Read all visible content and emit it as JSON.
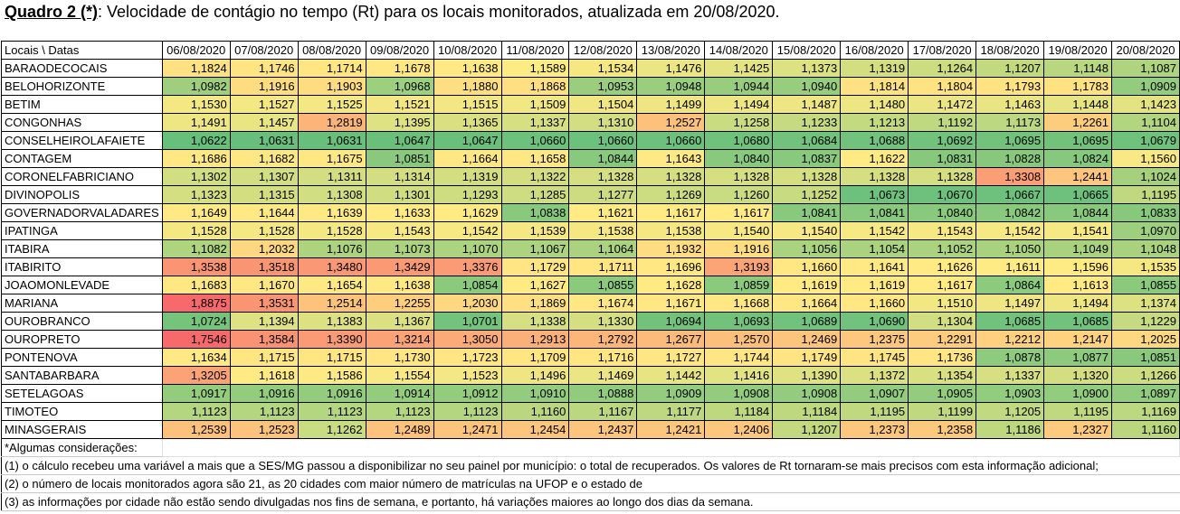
{
  "title": {
    "bold_part": "Quadro 2 (*)",
    "rest": ": Velocidade de contágio no tempo (Rt) para os locais monitorados,  atualizada em 20/08/2020."
  },
  "header": {
    "corner": "Locais  \\  Datas",
    "dates": [
      "06/08/2020",
      "07/08/2020",
      "08/08/2020",
      "09/08/2020",
      "10/08/2020",
      "11/08/2020",
      "12/08/2020",
      "13/08/2020",
      "14/08/2020",
      "15/08/2020",
      "16/08/2020",
      "17/08/2020",
      "18/08/2020",
      "19/08/2020",
      "20/08/2020"
    ]
  },
  "rows": [
    {
      "name": "BARAODECOCAIS",
      "values": [
        "1,1824",
        "1,1746",
        "1,1714",
        "1,1678",
        "1,1638",
        "1,1589",
        "1,1534",
        "1,1476",
        "1,1425",
        "1,1373",
        "1,1319",
        "1,1264",
        "1,1207",
        "1,1148",
        "1,1087"
      ]
    },
    {
      "name": "BELOHORIZONTE",
      "values": [
        "1,0982",
        "1,1916",
        "1,1903",
        "1,0968",
        "1,1880",
        "1,1868",
        "1,0953",
        "1,0948",
        "1,0944",
        "1,0940",
        "1,1814",
        "1,1804",
        "1,1793",
        "1,1783",
        "1,0909"
      ]
    },
    {
      "name": "BETIM",
      "values": [
        "1,1530",
        "1,1527",
        "1,1525",
        "1,1521",
        "1,1515",
        "1,1509",
        "1,1504",
        "1,1499",
        "1,1494",
        "1,1487",
        "1,1480",
        "1,1472",
        "1,1463",
        "1,1448",
        "1,1423"
      ]
    },
    {
      "name": "CONGONHAS",
      "values": [
        "1,1491",
        "1,1457",
        "1,2819",
        "1,1395",
        "1,1365",
        "1,1337",
        "1,1310",
        "1,2527",
        "1,1258",
        "1,1233",
        "1,1213",
        "1,1192",
        "1,1173",
        "1,2261",
        "1,1104"
      ]
    },
    {
      "name": "CONSELHEIROLAFAIETE",
      "values": [
        "1,0622",
        "1,0631",
        "1,0631",
        "1,0647",
        "1,0647",
        "1,0660",
        "1,0660",
        "1,0660",
        "1,0680",
        "1,0684",
        "1,0688",
        "1,0692",
        "1,0695",
        "1,0695",
        "1,0679"
      ]
    },
    {
      "name": "CONTAGEM",
      "values": [
        "1,1686",
        "1,1682",
        "1,1675",
        "1,0851",
        "1,1664",
        "1,1658",
        "1,0844",
        "1,1643",
        "1,0840",
        "1,0837",
        "1,1622",
        "1,0831",
        "1,0828",
        "1,0824",
        "1,1560"
      ]
    },
    {
      "name": "CORONELFABRICIANO",
      "values": [
        "1,1302",
        "1,1307",
        "1,1311",
        "1,1314",
        "1,1319",
        "1,1322",
        "1,1328",
        "1,1328",
        "1,1328",
        "1,1328",
        "1,1328",
        "1,1328",
        "1,3308",
        "1,2441",
        "1,1024"
      ]
    },
    {
      "name": "DIVINOPOLIS",
      "values": [
        "1,1323",
        "1,1315",
        "1,1308",
        "1,1301",
        "1,1293",
        "1,1285",
        "1,1277",
        "1,1269",
        "1,1260",
        "1,1252",
        "1,0673",
        "1,0670",
        "1,0667",
        "1,0665",
        "1,1195"
      ]
    },
    {
      "name": "GOVERNADORVALADARES",
      "values": [
        "1,1649",
        "1,1644",
        "1,1639",
        "1,1633",
        "1,1629",
        "1,0838",
        "1,1621",
        "1,1617",
        "1,1617",
        "1,0841",
        "1,0841",
        "1,0840",
        "1,0842",
        "1,0844",
        "1,0833"
      ]
    },
    {
      "name": "IPATINGA",
      "values": [
        "1,1528",
        "1,1528",
        "1,1528",
        "1,1543",
        "1,1542",
        "1,1539",
        "1,1538",
        "1,1538",
        "1,1540",
        "1,1540",
        "1,1542",
        "1,1543",
        "1,1542",
        "1,1541",
        "1,0970"
      ]
    },
    {
      "name": "ITABIRA",
      "values": [
        "1,1082",
        "1,2032",
        "1,1076",
        "1,1073",
        "1,1070",
        "1,1067",
        "1,1064",
        "1,1932",
        "1,1916",
        "1,1056",
        "1,1054",
        "1,1052",
        "1,1050",
        "1,1049",
        "1,1048"
      ]
    },
    {
      "name": "ITABIRITO",
      "values": [
        "1,3538",
        "1,3518",
        "1,3480",
        "1,3429",
        "1,3376",
        "1,1729",
        "1,1711",
        "1,1696",
        "1,3193",
        "1,1660",
        "1,1641",
        "1,1626",
        "1,1611",
        "1,1596",
        "1,1535"
      ]
    },
    {
      "name": "JOAOMONLEVADE",
      "values": [
        "1,1683",
        "1,1670",
        "1,1654",
        "1,1638",
        "1,0854",
        "1,1627",
        "1,0855",
        "1,1628",
        "1,0859",
        "1,1619",
        "1,1619",
        "1,1617",
        "1,0864",
        "1,1613",
        "1,0855"
      ]
    },
    {
      "name": "MARIANA",
      "values": [
        "1,8875",
        "1,3531",
        "1,2514",
        "1,2255",
        "1,2030",
        "1,1869",
        "1,1674",
        "1,1671",
        "1,1668",
        "1,1664",
        "1,1660",
        "1,1510",
        "1,1497",
        "1,1494",
        "1,1374"
      ]
    },
    {
      "name": "OUROBRANCO",
      "values": [
        "1,0724",
        "1,1394",
        "1,1383",
        "1,1367",
        "1,0701",
        "1,1338",
        "1,1330",
        "1,0694",
        "1,0693",
        "1,0689",
        "1,0690",
        "1,1304",
        "1,0685",
        "1,0685",
        "1,1229"
      ]
    },
    {
      "name": "OUROPRETO",
      "values": [
        "1,7546",
        "1,3584",
        "1,3390",
        "1,3214",
        "1,3050",
        "1,2913",
        "1,2792",
        "1,2677",
        "1,2570",
        "1,2469",
        "1,2375",
        "1,2291",
        "1,2212",
        "1,2147",
        "1,2025"
      ]
    },
    {
      "name": "PONTENOVA",
      "values": [
        "1,1634",
        "1,1715",
        "1,1715",
        "1,1730",
        "1,1723",
        "1,1709",
        "1,1716",
        "1,1727",
        "1,1744",
        "1,1749",
        "1,1745",
        "1,1736",
        "1,0878",
        "1,0877",
        "1,0851"
      ]
    },
    {
      "name": "SANTABARBARA",
      "values": [
        "1,3205",
        "1,1618",
        "1,1586",
        "1,1554",
        "1,1523",
        "1,1496",
        "1,1469",
        "1,1442",
        "1,1416",
        "1,1390",
        "1,1372",
        "1,1354",
        "1,1337",
        "1,1320",
        "1,1266"
      ]
    },
    {
      "name": "SETELAGOAS",
      "values": [
        "1,0917",
        "1,0916",
        "1,0916",
        "1,0914",
        "1,0912",
        "1,0910",
        "1,0888",
        "1,0909",
        "1,0908",
        "1,0908",
        "1,0907",
        "1,0905",
        "1,0903",
        "1,0900",
        "1,0897"
      ]
    },
    {
      "name": "TIMOTEO",
      "values": [
        "1,1123",
        "1,1123",
        "1,1123",
        "1,1123",
        "1,1123",
        "1,1160",
        "1,1167",
        "1,1177",
        "1,1184",
        "1,1184",
        "1,1195",
        "1,1199",
        "1,1205",
        "1,1195",
        "1,1169"
      ]
    },
    {
      "name": "MINASGERAIS",
      "values": [
        "1,2539",
        "1,2523",
        "1,1262",
        "1,2489",
        "1,2471",
        "1,2454",
        "1,2437",
        "1,2421",
        "1,2406",
        "1,1207",
        "1,2373",
        "1,2358",
        "1,1186",
        "1,2327",
        "1,1160"
      ]
    }
  ],
  "notes": [
    "*Algumas considerações:",
    "(1) o cálculo recebeu uma variável a mais que a SES/MG passou a disponibilizar no seu painel por município: o total de recuperados. Os valores de Rt tornaram-se mais precisos com esta informação adicional;",
    "(2) o número de locais monitorados agora são 21, as 20 cidades com maior número de matrículas na UFOP e o estado de",
    "(3) as informações por cidade não estão sendo divulgadas nos fins de semana, e portanto, há variações maiores ao longo dos dias da semana."
  ],
  "colors": {
    "scale_low": "#63be7b",
    "scale_mid": "#ffeb84",
    "scale_high": "#f8696b",
    "grid_border": "#000000"
  }
}
